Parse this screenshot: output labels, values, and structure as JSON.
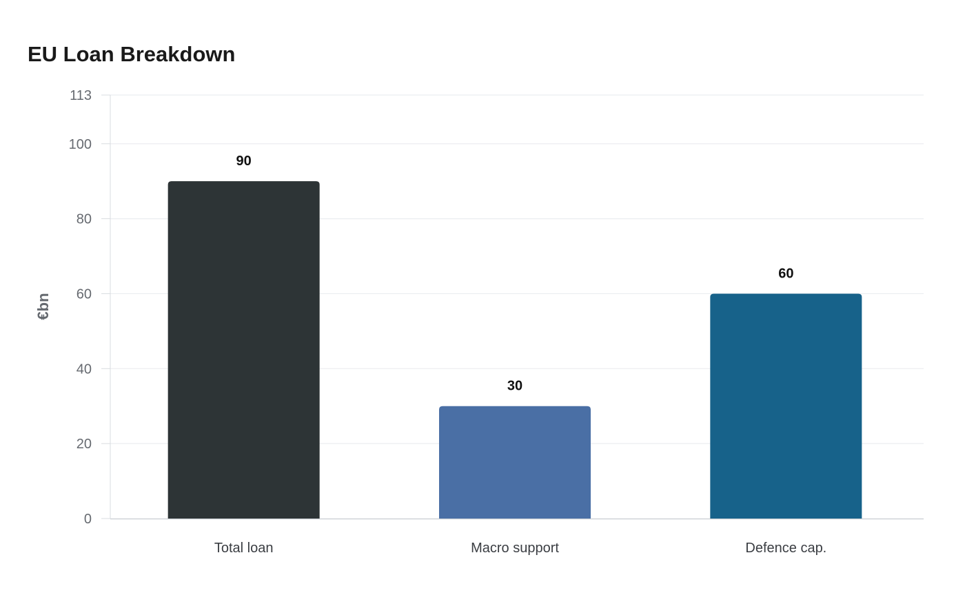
{
  "chart_data": {
    "type": "bar",
    "title": "EU Loan Breakdown",
    "categories": [
      "Total loan",
      "Macro support",
      "Defence cap."
    ],
    "values": [
      90,
      30,
      60
    ],
    "colors": [
      "#2d3436",
      "#4a6fa5",
      "#17628a"
    ],
    "xlabel": "",
    "ylabel": "€bn",
    "ylim": [
      0,
      113
    ],
    "yticks": [
      0,
      20,
      40,
      60,
      80,
      100,
      113
    ],
    "grid": true,
    "legend": "none"
  }
}
